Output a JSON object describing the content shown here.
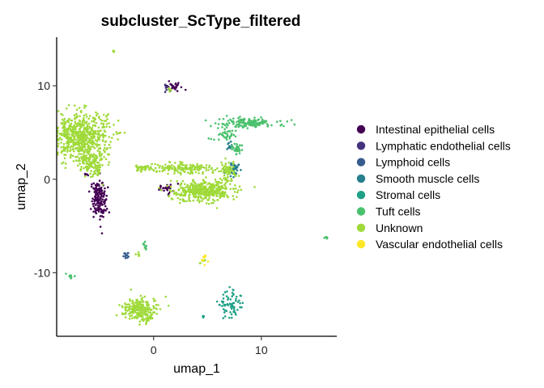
{
  "chart_data": {
    "type": "scatter",
    "title": "subcluster_ScType_filtered",
    "xlabel": "umap_1",
    "ylabel": "umap_2",
    "xlim": [
      -9.0,
      17.0
    ],
    "ylim": [
      -16.8,
      15.2
    ],
    "xticks": [
      0,
      10
    ],
    "yticks": [
      -10,
      0,
      10
    ],
    "grid": false,
    "legend_position": "right",
    "series": [
      {
        "name": "Intestinal epithelial cells",
        "color": "#440154",
        "clusters": [
          {
            "cx": -5.1,
            "cy": -2.2,
            "rx": 0.6,
            "ry": 1.8,
            "n": 160
          },
          {
            "cx": 1.9,
            "cy": 10.0,
            "rx": 0.8,
            "ry": 0.35,
            "n": 30
          },
          {
            "cx": 1.2,
            "cy": -1.0,
            "rx": 1.0,
            "ry": 0.5,
            "n": 25
          },
          {
            "cx": -6.2,
            "cy": 0.5,
            "rx": 0.2,
            "ry": 0.2,
            "n": 5
          }
        ]
      },
      {
        "name": "Lymphatic endothelial cells",
        "color": "#46337E",
        "clusters": [
          {
            "cx": 1.3,
            "cy": 9.7,
            "rx": 0.3,
            "ry": 0.3,
            "n": 8
          }
        ]
      },
      {
        "name": "Lymphoid cells",
        "color": "#365C8D",
        "clusters": [
          {
            "cx": -2.5,
            "cy": -8.1,
            "rx": 0.25,
            "ry": 0.3,
            "n": 14
          }
        ]
      },
      {
        "name": "Smooth muscle cells",
        "color": "#277F8E",
        "clusters": [
          {
            "cx": 7.4,
            "cy": 1.2,
            "rx": 0.5,
            "ry": 0.7,
            "n": 45
          },
          {
            "cx": 7.0,
            "cy": 3.6,
            "rx": 0.35,
            "ry": 0.4,
            "n": 12
          }
        ]
      },
      {
        "name": "Stromal cells",
        "color": "#1FA187",
        "clusters": [
          {
            "cx": 7.2,
            "cy": -13.5,
            "rx": 0.9,
            "ry": 1.3,
            "n": 70
          },
          {
            "cx": 4.6,
            "cy": -14.7,
            "rx": 0.12,
            "ry": 0.12,
            "n": 4
          }
        ]
      },
      {
        "name": "Tuft cells",
        "color": "#4AC16D",
        "clusters": [
          {
            "cx": 9.0,
            "cy": 6.0,
            "rx": 2.5,
            "ry": 0.45,
            "n": 140
          },
          {
            "cx": 6.6,
            "cy": 4.8,
            "rx": 1.0,
            "ry": 0.5,
            "n": 40
          },
          {
            "cx": 7.8,
            "cy": 3.2,
            "rx": 0.5,
            "ry": 0.6,
            "n": 30
          },
          {
            "cx": 16.0,
            "cy": -6.2,
            "rx": 0.2,
            "ry": 0.2,
            "n": 6
          },
          {
            "cx": -7.7,
            "cy": -10.4,
            "rx": 0.3,
            "ry": 0.25,
            "n": 10
          },
          {
            "cx": -0.8,
            "cy": -7.1,
            "rx": 0.2,
            "ry": 0.5,
            "n": 10
          }
        ]
      },
      {
        "name": "Unknown",
        "color": "#9FDA3A",
        "clusters": [
          {
            "cx": -6.8,
            "cy": 4.6,
            "rx": 2.5,
            "ry": 2.3,
            "n": 650
          },
          {
            "cx": -5.8,
            "cy": 1.8,
            "rx": 1.0,
            "ry": 1.3,
            "n": 140
          },
          {
            "cx": 4.5,
            "cy": -1.2,
            "rx": 2.6,
            "ry": 1.0,
            "n": 420
          },
          {
            "cx": 2.8,
            "cy": 1.2,
            "rx": 2.8,
            "ry": 0.5,
            "n": 150
          },
          {
            "cx": 6.9,
            "cy": 0.8,
            "rx": 0.6,
            "ry": 1.2,
            "n": 70
          },
          {
            "cx": -1.3,
            "cy": -13.8,
            "rx": 1.4,
            "ry": 1.1,
            "n": 230
          },
          {
            "cx": -0.5,
            "cy": -15.0,
            "rx": 0.3,
            "ry": 0.4,
            "n": 20
          },
          {
            "cx": -3.7,
            "cy": 13.6,
            "rx": 0.15,
            "ry": 0.2,
            "n": 5
          },
          {
            "cx": -1.0,
            "cy": 1.2,
            "rx": 0.8,
            "ry": 0.4,
            "n": 35
          },
          {
            "cx": 4.6,
            "cy": -8.8,
            "rx": 0.3,
            "ry": 0.3,
            "n": 8
          },
          {
            "cx": -1.4,
            "cy": -8.0,
            "rx": 0.2,
            "ry": 0.2,
            "n": 5
          },
          {
            "cx": 1.5,
            "cy": 9.5,
            "rx": 0.2,
            "ry": 0.2,
            "n": 5
          }
        ]
      },
      {
        "name": "Vascular endothelial cells",
        "color": "#FDE725",
        "clusters": [
          {
            "cx": 4.7,
            "cy": -8.5,
            "rx": 0.3,
            "ry": 0.5,
            "n": 10
          }
        ]
      }
    ]
  }
}
